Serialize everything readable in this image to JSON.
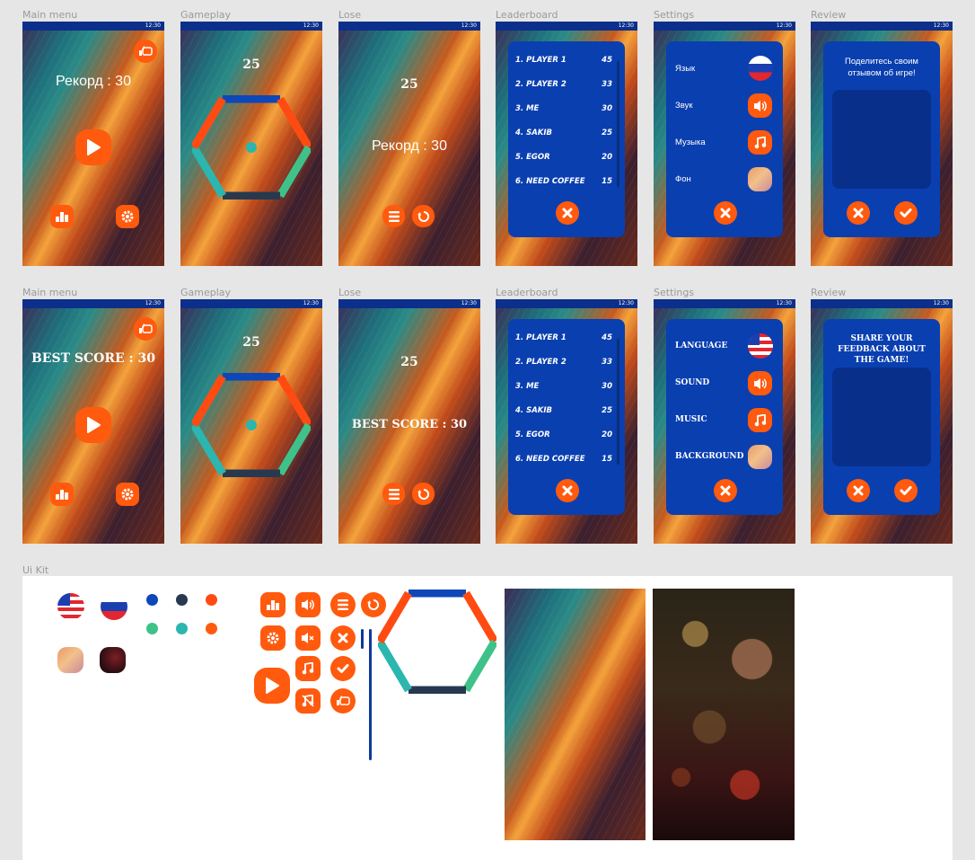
{
  "status_time": "12:30",
  "frames": [
    {
      "label": "Main menu"
    },
    {
      "label": "Gameplay"
    },
    {
      "label": "Lose"
    },
    {
      "label": "Leaderboard"
    },
    {
      "label": "Settings"
    },
    {
      "label": "Review"
    }
  ],
  "uikit_label": "Ui Kit",
  "ru": {
    "main_record": "Рекорд : 30",
    "game_score": "25",
    "lose_score": "25",
    "lose_record": "Рекорд : 30",
    "settings": [
      "Язык",
      "Звук",
      "Музыка",
      "Фон"
    ],
    "review_title": "Поделитесь своим отзывом об игре!"
  },
  "en": {
    "main_record": "BEST SCORE : 30",
    "game_score": "25",
    "lose_score": "25",
    "lose_record": "BEST SCORE : 30",
    "settings": [
      "LANGUAGE",
      "SOUND",
      "MUSIC",
      "BACKGROUND"
    ],
    "review_title": "SHARE YOUR FEEDBACK ABOUT THE GAME!"
  },
  "leaderboard": [
    {
      "name": "1. PLAYER 1",
      "score": "45"
    },
    {
      "name": "2. PLAYER 2",
      "score": "33"
    },
    {
      "name": "3. ME",
      "score": "30"
    },
    {
      "name": "4. SAKIB",
      "score": "25"
    },
    {
      "name": "5. EGOR",
      "score": "20"
    },
    {
      "name": "6. NEED COFFEE",
      "score": "15"
    }
  ],
  "colors": {
    "accent": "#ff5a0e",
    "panel": "#0a3fb0",
    "hex_blue": "#0d47b8",
    "hex_red": "#ff4b12",
    "hex_teal": "#2bb6b0",
    "hex_green": "#3ec28a",
    "hex_dark": "#27394f"
  }
}
